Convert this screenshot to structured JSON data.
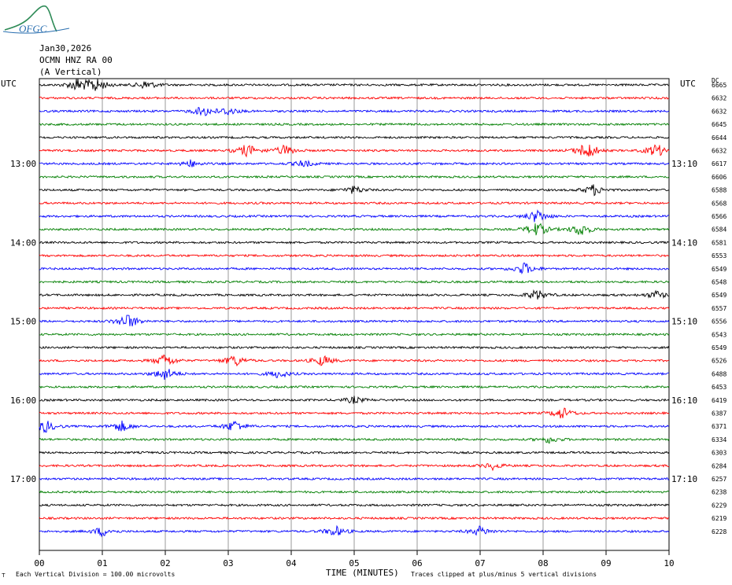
{
  "logo": {
    "text": "OFGC"
  },
  "header": {
    "date": "Jan30,2026",
    "station": "OCMN HNZ RA 00",
    "component": "(A Vertical)"
  },
  "axis": {
    "left_title": "UTC",
    "right_title": "UTC",
    "dc_title": "DC",
    "xlabel": "TIME (MINUTES)",
    "xticks": [
      "00",
      "01",
      "02",
      "03",
      "04",
      "05",
      "06",
      "07",
      "08",
      "09",
      "10"
    ],
    "left_times": [
      "13:00",
      "14:00",
      "15:00",
      "16:00",
      "17:00"
    ],
    "right_times": [
      "13:10",
      "14:10",
      "15:10",
      "16:10",
      "17:10"
    ]
  },
  "footer": {
    "scale_note": "Each Vertical Division =  100.00 microvolts",
    "clip_note": "Traces clipped at plus/minus 5 vertical divisions"
  },
  "colors": {
    "cycle": [
      "#000000",
      "#ff0000",
      "#0000ff",
      "#007f00"
    ],
    "grid": "#808080"
  },
  "chart_data": {
    "type": "seismogram",
    "x_unit": "minutes",
    "xlim": [
      0,
      10
    ],
    "minutes_per_line": 10,
    "lines_per_hour": 6,
    "dc_offsets": [
      6665,
      6632,
      6632,
      6645,
      6644,
      6632,
      6617,
      6606,
      6588,
      6568,
      6566,
      6584,
      6581,
      6553,
      6549,
      6548,
      6549,
      6557,
      6556,
      6543,
      6549,
      6526,
      6488,
      6453,
      6419,
      6387,
      6371,
      6334,
      6303,
      6284,
      6257,
      6238,
      6229,
      6219,
      6228
    ],
    "events": [
      {
        "trace": 0,
        "minute": 0.6,
        "amp": 1.0
      },
      {
        "trace": 0,
        "minute": 0.9,
        "amp": 1.2
      },
      {
        "trace": 0,
        "minute": 1.7,
        "amp": 0.7
      },
      {
        "trace": 2,
        "minute": 2.6,
        "amp": 0.8
      },
      {
        "trace": 2,
        "minute": 3.0,
        "amp": 0.6
      },
      {
        "trace": 5,
        "minute": 3.3,
        "amp": 1.0
      },
      {
        "trace": 5,
        "minute": 3.9,
        "amp": 0.8
      },
      {
        "trace": 5,
        "minute": 8.7,
        "amp": 1.5
      },
      {
        "trace": 5,
        "minute": 9.8,
        "amp": 1.0
      },
      {
        "trace": 6,
        "minute": 2.4,
        "amp": 0.5
      },
      {
        "trace": 6,
        "minute": 4.2,
        "amp": 0.5
      },
      {
        "trace": 8,
        "minute": 5.0,
        "amp": 0.6
      },
      {
        "trace": 8,
        "minute": 8.8,
        "amp": 0.8
      },
      {
        "trace": 10,
        "minute": 7.9,
        "amp": 1.0
      },
      {
        "trace": 11,
        "minute": 7.9,
        "amp": 1.2
      },
      {
        "trace": 11,
        "minute": 8.6,
        "amp": 1.0
      },
      {
        "trace": 14,
        "minute": 7.7,
        "amp": 0.9
      },
      {
        "trace": 16,
        "minute": 7.9,
        "amp": 0.8
      },
      {
        "trace": 16,
        "minute": 9.8,
        "amp": 0.6
      },
      {
        "trace": 18,
        "minute": 1.4,
        "amp": 1.3
      },
      {
        "trace": 21,
        "minute": 2.0,
        "amp": 1.0
      },
      {
        "trace": 21,
        "minute": 3.1,
        "amp": 0.9
      },
      {
        "trace": 21,
        "minute": 4.5,
        "amp": 0.8
      },
      {
        "trace": 22,
        "minute": 2.0,
        "amp": 1.0
      },
      {
        "trace": 22,
        "minute": 3.8,
        "amp": 0.6
      },
      {
        "trace": 24,
        "minute": 5.0,
        "amp": 0.5
      },
      {
        "trace": 25,
        "minute": 8.3,
        "amp": 0.9
      },
      {
        "trace": 26,
        "minute": 0.1,
        "amp": 0.9
      },
      {
        "trace": 26,
        "minute": 1.3,
        "amp": 0.8
      },
      {
        "trace": 26,
        "minute": 3.1,
        "amp": 0.9
      },
      {
        "trace": 27,
        "minute": 8.1,
        "amp": 0.5
      },
      {
        "trace": 29,
        "minute": 7.2,
        "amp": 0.5
      },
      {
        "trace": 34,
        "minute": 1.0,
        "amp": 0.7
      },
      {
        "trace": 34,
        "minute": 4.7,
        "amp": 0.8
      },
      {
        "trace": 34,
        "minute": 7.0,
        "amp": 0.7
      }
    ]
  }
}
